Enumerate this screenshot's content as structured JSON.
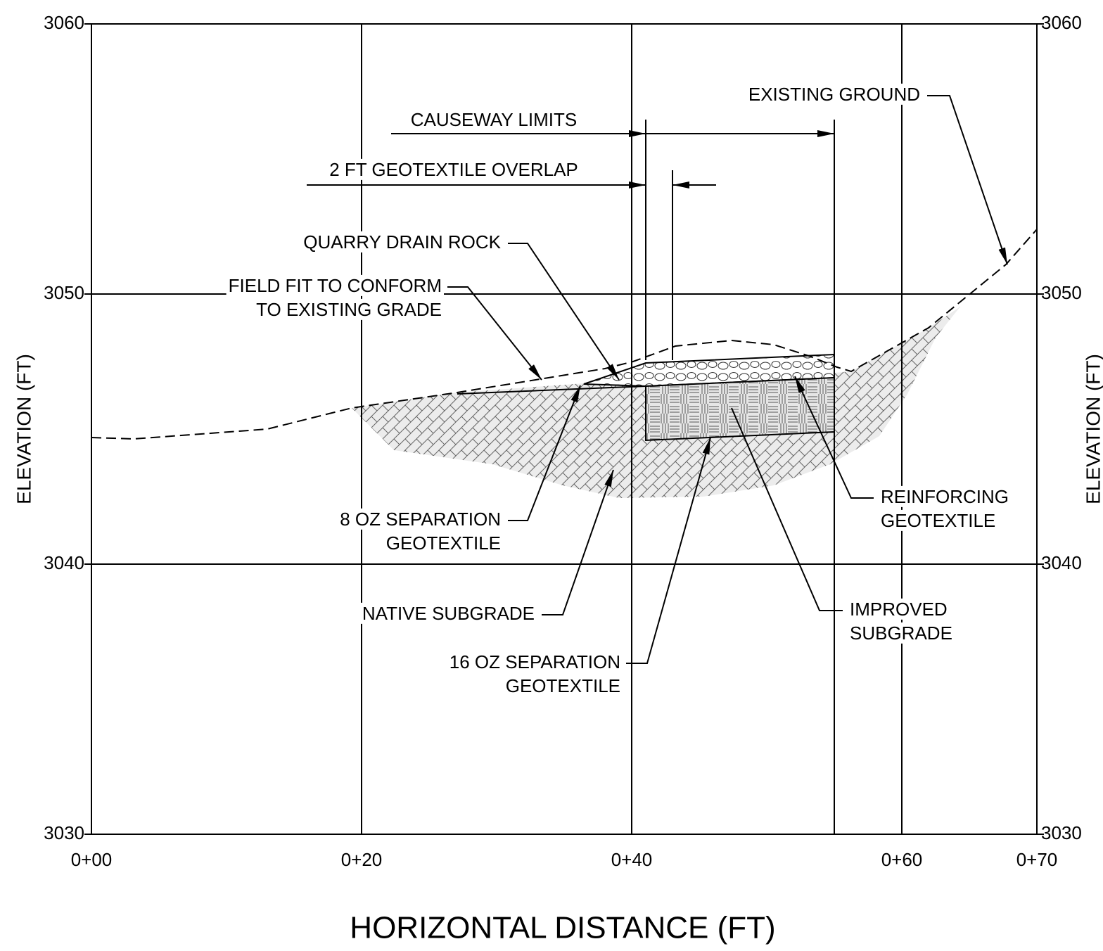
{
  "axes": {
    "x_label": "HORIZONTAL DISTANCE (FT)",
    "y_label": "ELEVATION (FT)",
    "xticks": [
      "0+00",
      "0+20",
      "0+40",
      "0+60",
      "0+70"
    ],
    "yticks": [
      "3060",
      "3050",
      "3040",
      "3030"
    ]
  },
  "annotations": [
    {
      "text": [
        "EXISTING GROUND"
      ]
    },
    {
      "text": [
        "CAUSEWAY LIMITS"
      ]
    },
    {
      "text": [
        "2 FT GEOTEXTILE OVERLAP"
      ]
    },
    {
      "text": [
        "QUARRY DRAIN ROCK"
      ]
    },
    {
      "text": [
        "FIELD FIT TO CONFORM",
        "TO EXISTING GRADE"
      ]
    },
    {
      "text": [
        "8 OZ SEPARATION",
        "GEOTEXTILE"
      ]
    },
    {
      "text": [
        "NATIVE SUBGRADE"
      ]
    },
    {
      "text": [
        "16 OZ SEPARATION",
        "GEOTEXTILE"
      ]
    },
    {
      "text": [
        "IMPROVED",
        "SUBGRADE"
      ]
    },
    {
      "text": [
        "REINFORCING",
        "GEOTEXTILE"
      ]
    }
  ]
}
